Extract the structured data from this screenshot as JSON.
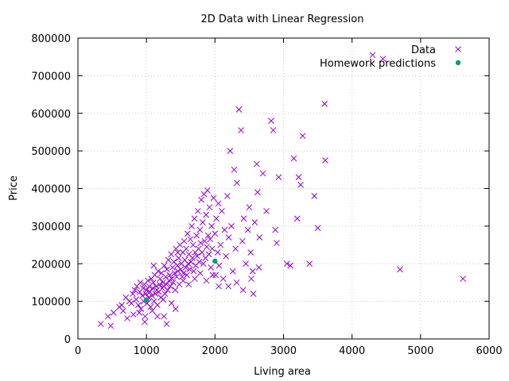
{
  "chart_data": {
    "type": "scatter",
    "title": "2D Data with Linear Regression",
    "xlabel": "Living area",
    "ylabel": "Price",
    "xlim": [
      0,
      6000
    ],
    "ylim": [
      0,
      800000
    ],
    "xticks": [
      0,
      1000,
      2000,
      3000,
      4000,
      5000,
      6000
    ],
    "yticks": [
      0,
      100000,
      200000,
      300000,
      400000,
      500000,
      600000,
      700000,
      800000
    ],
    "grid": true,
    "legend_position": "top-right",
    "series": [
      {
        "name": "Data",
        "marker": "x",
        "color": "#9400d3",
        "points": [
          [
            334,
            40000
          ],
          [
            438,
            60000
          ],
          [
            480,
            35000
          ],
          [
            520,
            70000
          ],
          [
            605,
            85000
          ],
          [
            640,
            90000
          ],
          [
            660,
            75000
          ],
          [
            700,
            110000
          ],
          [
            720,
            55000
          ],
          [
            750,
            100000
          ],
          [
            780,
            95000
          ],
          [
            800,
            120000
          ],
          [
            810,
            65000
          ],
          [
            830,
            130000
          ],
          [
            850,
            105000
          ],
          [
            860,
            140000
          ],
          [
            880,
            90000
          ],
          [
            900,
            125000
          ],
          [
            910,
            150000
          ],
          [
            920,
            80000
          ],
          [
            940,
            115000
          ],
          [
            950,
            135000
          ],
          [
            960,
            100000
          ],
          [
            970,
            145000
          ],
          [
            980,
            60000
          ],
          [
            990,
            120000
          ],
          [
            1000,
            130000
          ],
          [
            1010,
            95000
          ],
          [
            1020,
            155000
          ],
          [
            1030,
            110000
          ],
          [
            1040,
            140000
          ],
          [
            1050,
            125000
          ],
          [
            1060,
            85000
          ],
          [
            1070,
            160000
          ],
          [
            1080,
            115000
          ],
          [
            1090,
            135000
          ],
          [
            1100,
            150000
          ],
          [
            1110,
            100000
          ],
          [
            1120,
            170000
          ],
          [
            1130,
            120000
          ],
          [
            1140,
            140000
          ],
          [
            1150,
            130000
          ],
          [
            1160,
            90000
          ],
          [
            1170,
            180000
          ],
          [
            1180,
            125000
          ],
          [
            1190,
            145000
          ],
          [
            1200,
            160000
          ],
          [
            1210,
            110000
          ],
          [
            1220,
            175000
          ],
          [
            1230,
            135000
          ],
          [
            1240,
            150000
          ],
          [
            1250,
            140000
          ],
          [
            1260,
            195000
          ],
          [
            1270,
            120000
          ],
          [
            1280,
            165000
          ],
          [
            1290,
            145000
          ],
          [
            1300,
            185000
          ],
          [
            1310,
            130000
          ],
          [
            1320,
            210000
          ],
          [
            1330,
            155000
          ],
          [
            1340,
            170000
          ],
          [
            1350,
            140000
          ],
          [
            1360,
            225000
          ],
          [
            1370,
            160000
          ],
          [
            1380,
            190000
          ],
          [
            1390,
            150000
          ],
          [
            1400,
            205000
          ],
          [
            1410,
            175000
          ],
          [
            1420,
            130000
          ],
          [
            1430,
            240000
          ],
          [
            1440,
            165000
          ],
          [
            1450,
            195000
          ],
          [
            1460,
            180000
          ],
          [
            1470,
            215000
          ],
          [
            1480,
            145000
          ],
          [
            1490,
            250000
          ],
          [
            1500,
            185000
          ],
          [
            1510,
            200000
          ],
          [
            1520,
            165000
          ],
          [
            1530,
            230000
          ],
          [
            1540,
            175000
          ],
          [
            1550,
            260000
          ],
          [
            1560,
            210000
          ],
          [
            1570,
            190000
          ],
          [
            1580,
            240000
          ],
          [
            1590,
            170000
          ],
          [
            1600,
            280000
          ],
          [
            1610,
            200000
          ],
          [
            1620,
            225000
          ],
          [
            1630,
            185000
          ],
          [
            1640,
            265000
          ],
          [
            1650,
            205000
          ],
          [
            1660,
            300000
          ],
          [
            1670,
            215000
          ],
          [
            1680,
            250000
          ],
          [
            1690,
            180000
          ],
          [
            1700,
            320000
          ],
          [
            1710,
            230000
          ],
          [
            1720,
            195000
          ],
          [
            1730,
            275000
          ],
          [
            1740,
            220000
          ],
          [
            1750,
            340000
          ],
          [
            1760,
            240000
          ],
          [
            1770,
            205000
          ],
          [
            1780,
            290000
          ],
          [
            1790,
            255000
          ],
          [
            1800,
            370000
          ],
          [
            1810,
            230000
          ],
          [
            1820,
            310000
          ],
          [
            1830,
            200000
          ],
          [
            1840,
            385000
          ],
          [
            1850,
            260000
          ],
          [
            1860,
            215000
          ],
          [
            1870,
            330000
          ],
          [
            1880,
            245000
          ],
          [
            1890,
            395000
          ],
          [
            1900,
            275000
          ],
          [
            1910,
            225000
          ],
          [
            1920,
            350000
          ],
          [
            1930,
            265000
          ],
          [
            1940,
            190000
          ],
          [
            1950,
            300000
          ],
          [
            1960,
            240000
          ],
          [
            1980,
            375000
          ],
          [
            2000,
            280000
          ],
          [
            2010,
            170000
          ],
          [
            2020,
            320000
          ],
          [
            2040,
            230000
          ],
          [
            2050,
            360000
          ],
          [
            2060,
            195000
          ],
          [
            2080,
            250000
          ],
          [
            2100,
            340000
          ],
          [
            2120,
            160000
          ],
          [
            2140,
            290000
          ],
          [
            2160,
            220000
          ],
          [
            2180,
            380000
          ],
          [
            2200,
            270000
          ],
          [
            2220,
            500000
          ],
          [
            2240,
            300000
          ],
          [
            2260,
            180000
          ],
          [
            2280,
            450000
          ],
          [
            2300,
            240000
          ],
          [
            2320,
            415000
          ],
          [
            2350,
            610000
          ],
          [
            2380,
            555000
          ],
          [
            2400,
            260000
          ],
          [
            2420,
            320000
          ],
          [
            2450,
            200000
          ],
          [
            2480,
            290000
          ],
          [
            2500,
            350000
          ],
          [
            2520,
            230000
          ],
          [
            2550,
            180000
          ],
          [
            2580,
            310000
          ],
          [
            2610,
            465000
          ],
          [
            2620,
            390000
          ],
          [
            2650,
            270000
          ],
          [
            2700,
            440000
          ],
          [
            2750,
            340000
          ],
          [
            2820,
            580000
          ],
          [
            2850,
            555000
          ],
          [
            2880,
            290000
          ],
          [
            2900,
            255000
          ],
          [
            2930,
            430000
          ],
          [
            3050,
            200000
          ],
          [
            3100,
            195000
          ],
          [
            3150,
            480000
          ],
          [
            3200,
            320000
          ],
          [
            3220,
            430000
          ],
          [
            3250,
            410000
          ],
          [
            3280,
            540000
          ],
          [
            3380,
            200000
          ],
          [
            3450,
            380000
          ],
          [
            3500,
            295000
          ],
          [
            3600,
            625000
          ],
          [
            3610,
            475000
          ],
          [
            4300,
            755000
          ],
          [
            4450,
            745000
          ],
          [
            4700,
            185000
          ],
          [
            5620,
            160000
          ],
          [
            1105,
            195000
          ],
          [
            1245,
            105000
          ],
          [
            1365,
            95000
          ],
          [
            1455,
            230000
          ],
          [
            1535,
            155000
          ],
          [
            1615,
            145000
          ],
          [
            1705,
            160000
          ],
          [
            1785,
            175000
          ],
          [
            1875,
            155000
          ],
          [
            1965,
            170000
          ],
          [
            2055,
            140000
          ],
          [
            2195,
            140000
          ],
          [
            2315,
            150000
          ],
          [
            2410,
            130000
          ],
          [
            2530,
            160000
          ],
          [
            2640,
            190000
          ],
          [
            2560,
            120000
          ],
          [
            1255,
            60000
          ],
          [
            1160,
            60000
          ],
          [
            975,
            45000
          ],
          [
            1295,
            40000
          ],
          [
            1085,
            75000
          ],
          [
            895,
            70000
          ],
          [
            1425,
            80000
          ]
        ]
      },
      {
        "name": "Homework predictions",
        "marker": "circle",
        "color": "#009e73",
        "points": [
          [
            1000,
            104000
          ],
          [
            2000,
            207000
          ]
        ]
      }
    ]
  }
}
